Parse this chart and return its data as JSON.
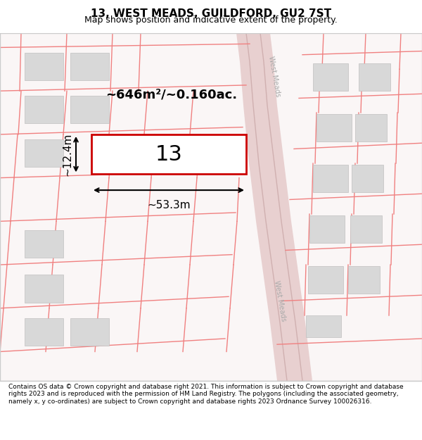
{
  "title": "13, WEST MEADS, GUILDFORD, GU2 7ST",
  "subtitle": "Map shows position and indicative extent of the property.",
  "footer": "Contains OS data © Crown copyright and database right 2021. This information is subject to Crown copyright and database rights 2023 and is reproduced with the permission of HM Land Registry. The polygons (including the associated geometry, namely x, y co-ordinates) are subject to Crown copyright and database rights 2023 Ordnance Survey 100026316.",
  "bg_color": "#f5f0f0",
  "map_bg": "#f9f5f5",
  "road_color": "#f0c0c0",
  "road_edge_color": "#e08080",
  "building_fill": "#e0e0e0",
  "building_edge": "#cccccc",
  "highlight_fill": "#ffffff",
  "highlight_edge": "#dd0000",
  "area_text": "~646m²/~0.160ac.",
  "width_text": "~53.3m",
  "height_text": "~12.4m",
  "plot_number": "13",
  "street_label_top": "West Meads",
  "street_label_bottom": "West Meads"
}
